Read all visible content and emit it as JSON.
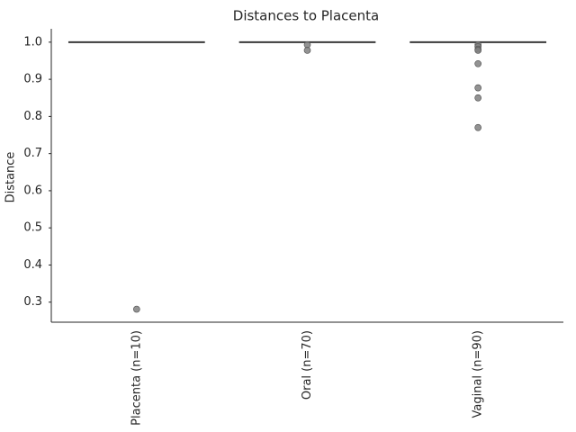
{
  "chart_data": {
    "type": "box",
    "title": "Distances to Placenta",
    "y_label": "Distance",
    "categories": [
      "Placenta (n=10)",
      "Oral (n=70)",
      "Vaginal (n=90)"
    ],
    "boxes": [
      {
        "whislo": 1.0,
        "q1": 1.0,
        "median": 1.0,
        "q3": 1.0,
        "whishi": 1.0,
        "outliers": [
          0.281
        ]
      },
      {
        "whislo": 1.0,
        "q1": 1.0,
        "median": 1.0,
        "q3": 1.0,
        "whishi": 1.0,
        "outliers": [
          0.993,
          0.978
        ]
      },
      {
        "whislo": 1.0,
        "q1": 1.0,
        "median": 1.0,
        "q3": 1.0,
        "whishi": 1.0,
        "outliers": [
          0.993,
          0.988,
          0.981,
          0.978,
          0.942,
          0.877,
          0.85,
          0.77
        ]
      }
    ],
    "box_color": "#d9d9d9",
    "line_color": "#3a3a3a",
    "outlier_color": "#808080",
    "ylim": [
      0.246,
      1.036
    ],
    "yticks": [
      0.3,
      0.4,
      0.5,
      0.6,
      0.7,
      0.8,
      0.9,
      {
        "value": 1.0,
        "label": "1.0"
      }
    ]
  }
}
